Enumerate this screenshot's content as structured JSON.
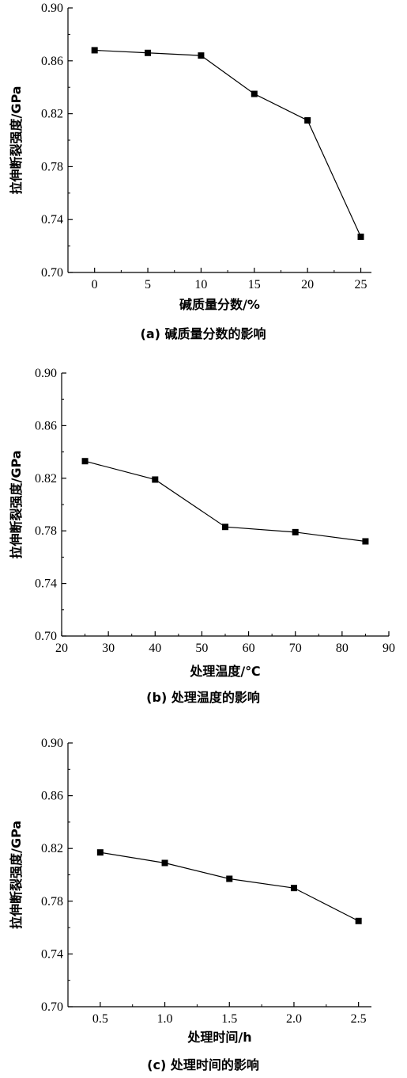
{
  "colors": {
    "line": "#000000",
    "marker": "#000000",
    "axis": "#000000"
  },
  "chart_data": [
    {
      "type": "line",
      "caption": "(a) 碱质量分数的影响",
      "xlabel": "碱质量分数/%",
      "ylabel": "拉伸断裂强度/GPa",
      "xlim": [
        -2.5,
        26
      ],
      "ylim": [
        0.7,
        0.9
      ],
      "xticks": [
        0,
        5,
        10,
        15,
        20,
        25
      ],
      "xtick_labels": [
        "0",
        "5",
        "10",
        "15",
        "20",
        "25"
      ],
      "yticks": [
        0.7,
        0.74,
        0.78,
        0.82,
        0.86,
        0.9
      ],
      "ytick_labels": [
        "0.70",
        "0.74",
        "0.78",
        "0.82",
        "0.86",
        "0.90"
      ],
      "series": [
        {
          "x": [
            0,
            5,
            10,
            15,
            20,
            25
          ],
          "y": [
            0.868,
            0.866,
            0.864,
            0.835,
            0.815,
            0.727
          ]
        }
      ]
    },
    {
      "type": "line",
      "caption": "(b) 处理温度的影响",
      "xlabel": "处理温度/℃",
      "ylabel": "拉伸断裂强度/GPa",
      "xlim": [
        20,
        90
      ],
      "ylim": [
        0.7,
        0.9
      ],
      "xticks": [
        20,
        30,
        40,
        50,
        60,
        70,
        80,
        90
      ],
      "xtick_labels": [
        "20",
        "30",
        "40",
        "50",
        "60",
        "70",
        "80",
        "90"
      ],
      "yticks": [
        0.7,
        0.74,
        0.78,
        0.82,
        0.86,
        0.9
      ],
      "ytick_labels": [
        "0.70",
        "0.74",
        "0.78",
        "0.82",
        "0.86",
        "0.90"
      ],
      "series": [
        {
          "x": [
            25,
            40,
            55,
            70,
            85
          ],
          "y": [
            0.833,
            0.819,
            0.783,
            0.779,
            0.772
          ]
        }
      ]
    },
    {
      "type": "line",
      "caption": "(c) 处理时间的影响",
      "xlabel": "处理时间/h",
      "ylabel": "拉伸断裂强度/GPa",
      "xlim": [
        0.25,
        2.6
      ],
      "ylim": [
        0.7,
        0.9
      ],
      "xticks": [
        0.5,
        1.0,
        1.5,
        2.0,
        2.5
      ],
      "xtick_labels": [
        "0.5",
        "1.0",
        "1.5",
        "2.0",
        "2.5"
      ],
      "yticks": [
        0.7,
        0.74,
        0.78,
        0.82,
        0.86,
        0.9
      ],
      "ytick_labels": [
        "0.70",
        "0.74",
        "0.78",
        "0.82",
        "0.86",
        "0.90"
      ],
      "series": [
        {
          "x": [
            0.5,
            1.0,
            1.5,
            2.0,
            2.5
          ],
          "y": [
            0.817,
            0.809,
            0.797,
            0.79,
            0.765
          ]
        }
      ]
    }
  ]
}
